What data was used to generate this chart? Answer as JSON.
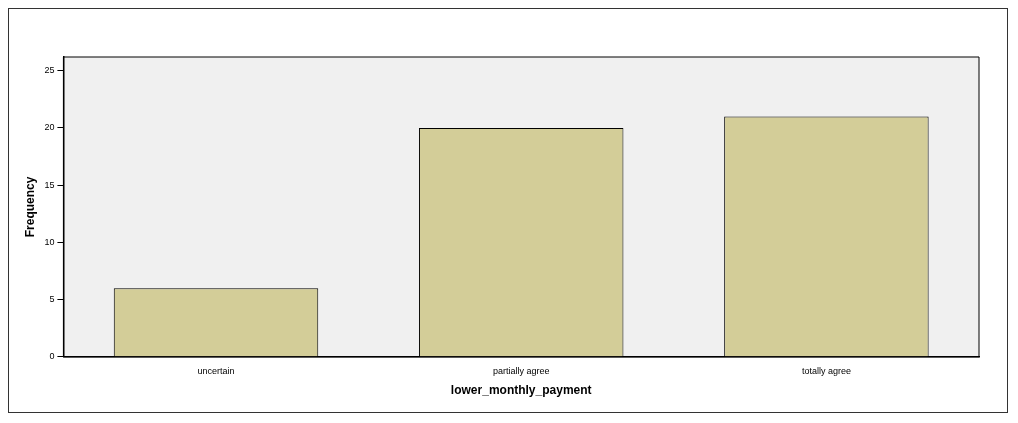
{
  "chart_data": {
    "type": "bar",
    "xlabel": "lower_monthly_payment",
    "ylabel": "Frequency",
    "categories": [
      "uncertain",
      "partially agree",
      "totally agree"
    ],
    "values": [
      6,
      20,
      21
    ],
    "color": "#d3cd98",
    "ylim": [
      0,
      26.2
    ],
    "yticks": [
      0,
      5,
      10,
      15,
      20,
      25
    ],
    "grid": false,
    "legend": false
  }
}
